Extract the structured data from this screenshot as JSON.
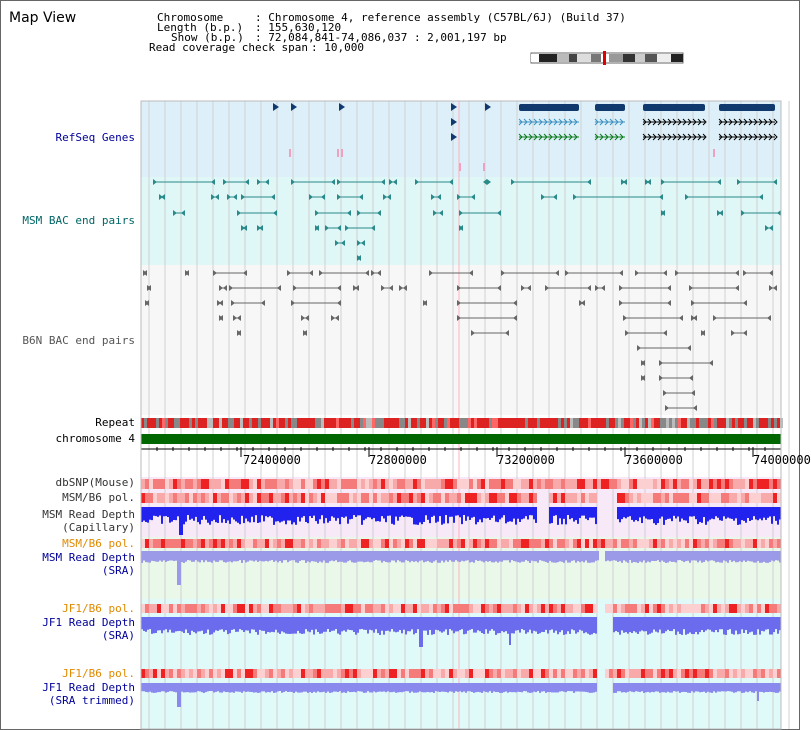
{
  "view_title": "Map View",
  "info": {
    "chromosome_label": "Chromosome",
    "chromosome_value": ": Chromosome 4, reference assembly (C57BL/6J) (Build 37)",
    "length_label": "Length (b.p.)",
    "length_value": ": 155,630,120",
    "show_label": "Show (b.p.)",
    "show_value": ": 72,084,841-74,086,037 : 2,001,197 bp",
    "coverage_label": "Read coverage check span",
    "coverage_value": ": 10,000"
  },
  "tracks": {
    "refseq": "RefSeq Genes",
    "msm_bac": "MSM BAC end pairs",
    "b6n_bac": "B6N BAC end pairs",
    "repeat": "Repeat",
    "chromosome": "chromosome 4",
    "dbsnp": "dbSNP(Mouse)",
    "msm_b6_pol_1": "MSM/B6 pol.",
    "msm_depth_cap_1": "MSM Read Depth",
    "msm_depth_cap_2": "(Capillary)",
    "msm_b6_pol_2": "MSM/B6 pol.",
    "msm_depth_sra_1": "MSM Read Depth",
    "msm_depth_sra_2": "(SRA)",
    "jf1_b6_pol_1": "JF1/B6 pol.",
    "jf1_depth_sra_1": "JF1 Read Depth",
    "jf1_depth_sra_2": "(SRA)",
    "jf1_b6_pol_2": "JF1/B6 pol.",
    "jf1_depth_trim_1": "JF1 Read Depth",
    "jf1_depth_trim_2": "(SRA trimmed)"
  },
  "axis": {
    "ticks": [
      "72400000",
      "72800000",
      "73200000",
      "73600000",
      "74000000"
    ]
  },
  "colors": {
    "refseq_label": "#000099",
    "msm_bac_label": "#006666",
    "b6n_bac_label": "#555555",
    "pol_label": "#e08a00",
    "depth_label": "#000099",
    "chromosome_bar": "#006600",
    "refseq_bg": "#ddf0fa",
    "msm_bg": "#e0f7f7",
    "depth_blue": "#2222ee"
  }
}
